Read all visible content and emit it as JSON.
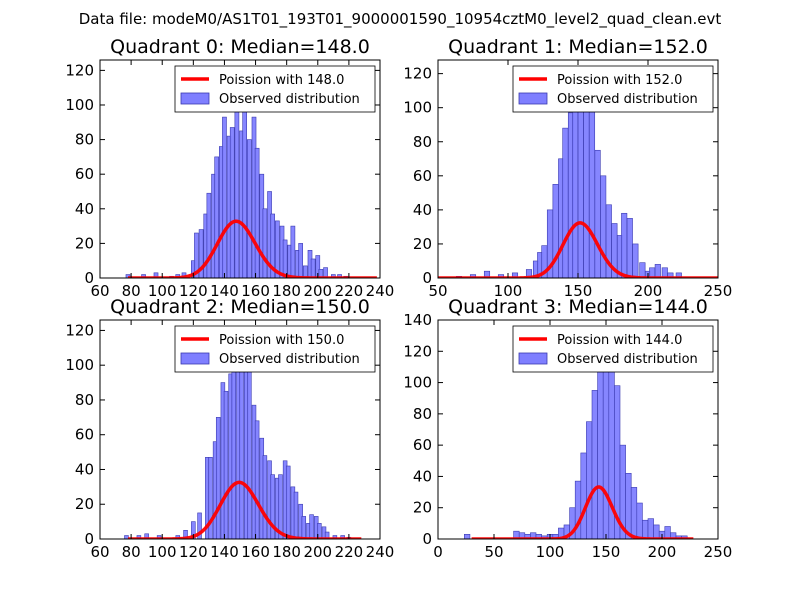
{
  "suptitle": "Data file: modeM0/AS1T01_193T01_9000001590_10954cztM0_level2_quad_clean.evt",
  "chart_data": [
    {
      "type": "bar",
      "title": "Quadrant 0: Median=148.0",
      "xlim": [
        60,
        240
      ],
      "ylim": [
        0,
        126
      ],
      "xticks": [
        60,
        80,
        100,
        120,
        140,
        160,
        180,
        200,
        220,
        240
      ],
      "yticks": [
        0,
        20,
        40,
        60,
        80,
        100,
        120
      ],
      "bin_width": 2.6,
      "hist": [
        [
          78,
          2
        ],
        [
          88,
          2
        ],
        [
          96,
          3
        ],
        [
          106,
          1
        ],
        [
          110,
          2
        ],
        [
          114,
          3
        ],
        [
          120,
          10
        ],
        [
          122,
          26
        ],
        [
          125,
          28
        ],
        [
          128,
          37
        ],
        [
          130,
          49
        ],
        [
          133,
          60
        ],
        [
          135,
          70
        ],
        [
          138,
          76
        ],
        [
          140,
          93
        ],
        [
          143,
          82
        ],
        [
          145,
          87
        ],
        [
          148,
          104
        ],
        [
          151,
          85
        ],
        [
          153,
          103
        ],
        [
          156,
          80
        ],
        [
          159,
          93
        ],
        [
          161,
          75
        ],
        [
          164,
          60
        ],
        [
          166,
          40
        ],
        [
          169,
          50
        ],
        [
          171,
          37
        ],
        [
          174,
          33
        ],
        [
          177,
          30
        ],
        [
          179,
          22
        ],
        [
          182,
          19
        ],
        [
          184,
          30
        ],
        [
          187,
          16
        ],
        [
          189,
          20
        ],
        [
          192,
          7
        ],
        [
          195,
          16
        ],
        [
          197,
          11
        ],
        [
          200,
          13
        ],
        [
          202,
          5
        ],
        [
          205,
          6
        ],
        [
          210,
          2
        ],
        [
          214,
          2
        ],
        [
          218,
          1
        ]
      ],
      "poisson_lambda": 148,
      "poisson_scale": 1000,
      "poisson_range": [
        78,
        238
      ],
      "legend": [
        "Poission with 148.0",
        "Observed distribution"
      ]
    },
    {
      "type": "bar",
      "title": "Quadrant 1: Median=152.0",
      "xlim": [
        50,
        250
      ],
      "ylim": [
        0,
        128
      ],
      "xticks": [
        50,
        100,
        150,
        200,
        250
      ],
      "yticks": [
        0,
        20,
        40,
        60,
        80,
        100,
        120
      ],
      "bin_width": 3.9,
      "hist": [
        [
          65,
          1
        ],
        [
          75,
          2
        ],
        [
          85,
          4
        ],
        [
          95,
          2
        ],
        [
          105,
          3
        ],
        [
          115,
          5
        ],
        [
          120,
          10
        ],
        [
          123,
          15
        ],
        [
          126,
          19
        ],
        [
          130,
          40
        ],
        [
          134,
          55
        ],
        [
          138,
          70
        ],
        [
          141,
          88
        ],
        [
          145,
          97
        ],
        [
          148,
          100
        ],
        [
          152,
          118
        ],
        [
          156,
          110
        ],
        [
          160,
          105
        ],
        [
          164,
          75
        ],
        [
          168,
          60
        ],
        [
          172,
          43
        ],
        [
          176,
          32
        ],
        [
          180,
          25
        ],
        [
          183,
          38
        ],
        [
          187,
          35
        ],
        [
          191,
          20
        ],
        [
          196,
          9
        ],
        [
          200,
          4
        ],
        [
          203,
          6
        ],
        [
          207,
          8
        ],
        [
          212,
          6
        ],
        [
          216,
          3
        ],
        [
          222,
          3
        ]
      ],
      "poisson_lambda": 152,
      "poisson_scale": 1000,
      "poisson_range": [
        50,
        250
      ],
      "legend": [
        "Poission with 152.0",
        "Observed distribution"
      ]
    },
    {
      "type": "bar",
      "title": "Quadrant 2: Median=150.0",
      "xlim": [
        60,
        240
      ],
      "ylim": [
        0,
        126
      ],
      "xticks": [
        60,
        80,
        100,
        120,
        140,
        160,
        180,
        200,
        220,
        240
      ],
      "yticks": [
        0,
        20,
        40,
        60,
        80,
        100,
        120
      ],
      "bin_width": 2.5,
      "hist": [
        [
          77,
          2
        ],
        [
          85,
          2
        ],
        [
          90,
          3
        ],
        [
          98,
          2
        ],
        [
          110,
          2
        ],
        [
          115,
          5
        ],
        [
          120,
          10
        ],
        [
          124,
          15
        ],
        [
          129,
          47
        ],
        [
          131,
          47
        ],
        [
          134,
          56
        ],
        [
          136,
          70
        ],
        [
          139,
          90
        ],
        [
          141,
          85
        ],
        [
          144,
          95
        ],
        [
          146,
          100
        ],
        [
          149,
          110
        ],
        [
          151,
          107
        ],
        [
          154,
          100
        ],
        [
          156,
          98
        ],
        [
          159,
          77
        ],
        [
          161,
          68
        ],
        [
          164,
          58
        ],
        [
          166,
          48
        ],
        [
          169,
          45
        ],
        [
          171,
          37
        ],
        [
          174,
          35
        ],
        [
          176,
          37
        ],
        [
          179,
          45
        ],
        [
          181,
          42
        ],
        [
          184,
          30
        ],
        [
          186,
          27
        ],
        [
          189,
          20
        ],
        [
          191,
          13
        ],
        [
          194,
          9
        ],
        [
          196,
          14
        ],
        [
          199,
          13
        ],
        [
          201,
          9
        ],
        [
          204,
          7
        ],
        [
          206,
          4
        ],
        [
          211,
          2
        ],
        [
          216,
          2
        ],
        [
          220,
          1
        ]
      ],
      "poisson_lambda": 150,
      "poisson_scale": 1000,
      "poisson_range": [
        78,
        228
      ],
      "legend": [
        "Poission with 150.0",
        "Observed distribution"
      ]
    },
    {
      "type": "bar",
      "title": "Quadrant 3: Median=144.0",
      "xlim": [
        0,
        250
      ],
      "ylim": [
        0,
        140
      ],
      "xticks": [
        0,
        50,
        100,
        150,
        200,
        250
      ],
      "yticks": [
        0,
        20,
        40,
        60,
        80,
        100,
        120,
        140
      ],
      "bin_width": 5.0,
      "hist": [
        [
          26,
          3
        ],
        [
          70,
          5
        ],
        [
          75,
          4
        ],
        [
          80,
          3
        ],
        [
          85,
          4
        ],
        [
          90,
          3
        ],
        [
          95,
          2
        ],
        [
          100,
          3
        ],
        [
          105,
          3
        ],
        [
          110,
          7
        ],
        [
          115,
          9
        ],
        [
          120,
          20
        ],
        [
          125,
          37
        ],
        [
          130,
          55
        ],
        [
          135,
          75
        ],
        [
          140,
          95
        ],
        [
          145,
          110
        ],
        [
          150,
          130
        ],
        [
          155,
          110
        ],
        [
          160,
          98
        ],
        [
          165,
          60
        ],
        [
          170,
          42
        ],
        [
          175,
          33
        ],
        [
          180,
          23
        ],
        [
          185,
          12
        ],
        [
          190,
          13
        ],
        [
          195,
          9
        ],
        [
          200,
          5
        ],
        [
          205,
          8
        ],
        [
          210,
          4
        ],
        [
          215,
          2
        ],
        [
          220,
          2
        ]
      ],
      "poisson_lambda": 144,
      "poisson_scale": 1000,
      "poisson_range": [
        30,
        228
      ],
      "legend": [
        "Poission with 144.0",
        "Observed distribution"
      ]
    }
  ],
  "colors": {
    "bar_fill": "#7f7fff",
    "bar_stroke": "#3a3ab0",
    "poisson_line": "#ff0000"
  }
}
